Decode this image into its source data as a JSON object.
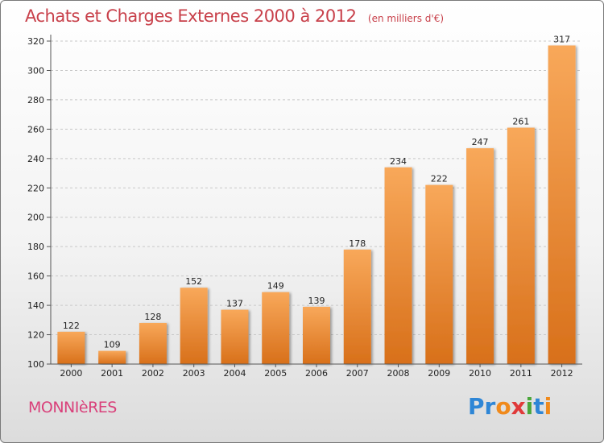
{
  "chart_data": {
    "type": "bar",
    "title": "Achats et Charges Externes 2000 à 2012",
    "subtitle": "(en milliers d'€)",
    "categories": [
      "2000",
      "2001",
      "2002",
      "2003",
      "2004",
      "2005",
      "2006",
      "2007",
      "2008",
      "2009",
      "2010",
      "2011",
      "2012"
    ],
    "values": [
      122,
      109,
      128,
      152,
      137,
      149,
      139,
      178,
      234,
      222,
      247,
      261,
      317
    ],
    "xlabel": "",
    "ylabel": "",
    "ylim": [
      100,
      320
    ],
    "yticks": [
      100,
      120,
      140,
      160,
      180,
      200,
      220,
      240,
      260,
      280,
      300,
      320
    ],
    "grid": "horizontal dashed",
    "legend": "none",
    "bar_color_top": "#f8a85a",
    "bar_color_bottom": "#d8701a"
  },
  "footer": {
    "commune": "MONNIèRES",
    "logo_letters": [
      {
        "ch": "P",
        "color": "#2e86d6"
      },
      {
        "ch": "r",
        "color": "#2e86d6"
      },
      {
        "ch": "o",
        "color": "#f08a1c"
      },
      {
        "ch": "x",
        "color": "#e03a3a"
      },
      {
        "ch": "i",
        "color": "#4aa63a"
      },
      {
        "ch": "t",
        "color": "#2e86d6"
      },
      {
        "ch": "i",
        "color": "#f08a1c"
      }
    ]
  }
}
